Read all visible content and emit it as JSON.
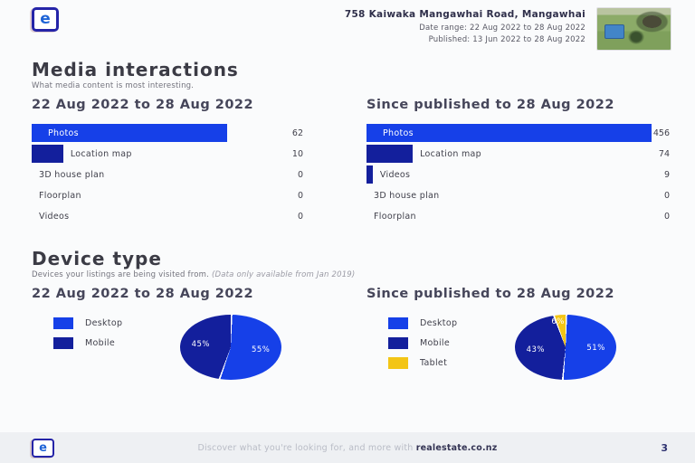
{
  "brand": {
    "logo_letter": "e"
  },
  "header": {
    "address": "758 Kaiwaka Mangawhai Road, Mangawhai",
    "date_range": "Date range: 22 Aug 2022 to 28 Aug 2022",
    "published": "Published: 13 Jun 2022 to 28 Aug 2022"
  },
  "media_interactions": {
    "title": "Media interactions",
    "subtitle": "What media content is most interesting.",
    "left": {
      "heading": "22 Aug 2022 to 28 Aug 2022",
      "rows": [
        {
          "label": "Photos",
          "value": 62,
          "color": "primary"
        },
        {
          "label": "Location map",
          "value": 10,
          "color": "navy"
        },
        {
          "label": "3D house plan",
          "value": 0,
          "color": "navy"
        },
        {
          "label": "Floorplan",
          "value": 0,
          "color": "navy"
        },
        {
          "label": "Videos",
          "value": 0,
          "color": "navy"
        }
      ]
    },
    "right": {
      "heading": "Since published to 28 Aug 2022",
      "rows": [
        {
          "label": "Photos",
          "value": 456,
          "color": "primary"
        },
        {
          "label": "Location map",
          "value": 74,
          "color": "navy"
        },
        {
          "label": "Videos",
          "value": 9,
          "color": "navy"
        },
        {
          "label": "3D house plan",
          "value": 0,
          "color": "navy"
        },
        {
          "label": "Floorplan",
          "value": 0,
          "color": "navy"
        }
      ]
    }
  },
  "device_type": {
    "title": "Device type",
    "subtitle": "Devices your listings are being visited from.",
    "subtitle_note": "(Data only available from Jan 2019)",
    "left": {
      "heading": "22 Aug 2022 to 28 Aug 2022",
      "slices": [
        {
          "label": "Desktop",
          "pct": 55,
          "color": "primary"
        },
        {
          "label": "Mobile",
          "pct": 45,
          "color": "navy"
        }
      ]
    },
    "right": {
      "heading": "Since published to 28 Aug 2022",
      "slices": [
        {
          "label": "Desktop",
          "pct": 51,
          "color": "primary"
        },
        {
          "label": "Mobile",
          "pct": 43,
          "color": "navy"
        },
        {
          "label": "Tablet",
          "pct": 6,
          "color": "yellow"
        }
      ]
    }
  },
  "footer": {
    "tagline": "Discover what you're looking for, and more with",
    "brand": "realestate.co.nz",
    "page_number": "3"
  },
  "colors": {
    "primary": "#1640E8",
    "navy": "#131F9C",
    "yellow": "#F3C516"
  },
  "chart_data": [
    {
      "type": "bar",
      "orientation": "horizontal",
      "title": "Media interactions — 22 Aug 2022 to 28 Aug 2022",
      "categories": [
        "Photos",
        "Location map",
        "3D house plan",
        "Floorplan",
        "Videos"
      ],
      "values": [
        62,
        10,
        0,
        0,
        0
      ]
    },
    {
      "type": "bar",
      "orientation": "horizontal",
      "title": "Media interactions — Since published to 28 Aug 2022",
      "categories": [
        "Photos",
        "Location map",
        "Videos",
        "3D house plan",
        "Floorplan"
      ],
      "values": [
        456,
        74,
        9,
        0,
        0
      ]
    },
    {
      "type": "pie",
      "unit": "%",
      "title": "Device type — 22 Aug 2022 to 28 Aug 2022",
      "categories": [
        "Desktop",
        "Mobile"
      ],
      "values": [
        55,
        45
      ],
      "legend_position": "left"
    },
    {
      "type": "pie",
      "unit": "%",
      "title": "Device type — Since published to 28 Aug 2022",
      "categories": [
        "Desktop",
        "Mobile",
        "Tablet"
      ],
      "values": [
        51,
        43,
        6
      ],
      "legend_position": "left"
    }
  ]
}
